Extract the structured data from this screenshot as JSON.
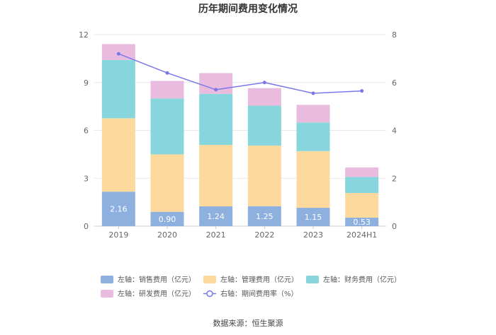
{
  "chart_data": {
    "type": "bar",
    "title": "历年期间费用变化情况",
    "categories": [
      "2019",
      "2020",
      "2021",
      "2022",
      "2023",
      "2024H1"
    ],
    "left_axis": {
      "min": 0,
      "max": 12,
      "ticks": [
        "0",
        "3",
        "6",
        "9",
        "12"
      ]
    },
    "right_axis": {
      "min": 0,
      "max": 8,
      "ticks": [
        "0",
        "2",
        "4",
        "6",
        "8"
      ]
    },
    "series": [
      {
        "name": "左轴：销售费用（亿元）",
        "color": "#8eb0de",
        "values": [
          2.16,
          0.9,
          1.24,
          1.25,
          1.15,
          0.53
        ],
        "labels": [
          "2.16",
          "0.90",
          "1.24",
          "1.25",
          "1.15",
          "0.53"
        ]
      },
      {
        "name": "左轴：管理费用（亿元）",
        "color": "#fdd99e",
        "values": [
          4.6,
          3.6,
          3.85,
          3.8,
          3.55,
          1.55
        ]
      },
      {
        "name": "左轴：财务费用（亿元）",
        "color": "#87d6dd",
        "values": [
          3.65,
          3.5,
          3.2,
          2.5,
          1.8,
          1.0
        ]
      },
      {
        "name": "左轴：研发费用（亿元）",
        "color": "#e9bcdf",
        "values": [
          1.0,
          1.1,
          1.3,
          1.1,
          1.1,
          0.6
        ]
      }
    ],
    "line_series": {
      "name": "右轴：期间费用率（%）",
      "color": "#7a78e8",
      "values": [
        7.2,
        6.4,
        5.7,
        6.0,
        5.55,
        5.65
      ]
    },
    "source": "数据来源：恒生聚源"
  }
}
